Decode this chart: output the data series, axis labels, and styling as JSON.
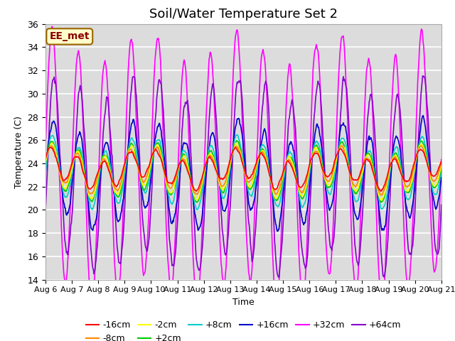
{
  "title": "Soil/Water Temperature Set 2",
  "xlabel": "Time",
  "ylabel": "Temperature (C)",
  "ylim": [
    14,
    36
  ],
  "yticks": [
    14,
    16,
    18,
    20,
    22,
    24,
    26,
    28,
    30,
    32,
    34,
    36
  ],
  "xtick_labels": [
    "Aug 6",
    "Aug 7",
    "Aug 8",
    "Aug 9",
    "Aug 10",
    "Aug 11",
    "Aug 12",
    "Aug 13",
    "Aug 14",
    "Aug 15",
    "Aug 16",
    "Aug 17",
    "Aug 18",
    "Aug 19",
    "Aug 20",
    "Aug 21"
  ],
  "annotation_text": "EE_met",
  "annotation_bg": "#ffffcc",
  "annotation_border": "#996600",
  "series": [
    {
      "label": "-16cm",
      "color": "#ff0000"
    },
    {
      "label": "-8cm",
      "color": "#ff8800"
    },
    {
      "label": "-2cm",
      "color": "#ffff00"
    },
    {
      "label": "+2cm",
      "color": "#00cc00"
    },
    {
      "label": "+8cm",
      "color": "#00cccc"
    },
    {
      "label": "+16cm",
      "color": "#0000cc"
    },
    {
      "label": "+32cm",
      "color": "#ff00ff"
    },
    {
      "label": "+64cm",
      "color": "#8800cc"
    }
  ],
  "plot_bg": "#dcdcdc",
  "grid_color": "#ffffff",
  "title_fontsize": 13,
  "axis_fontsize": 9,
  "legend_fontsize": 9
}
